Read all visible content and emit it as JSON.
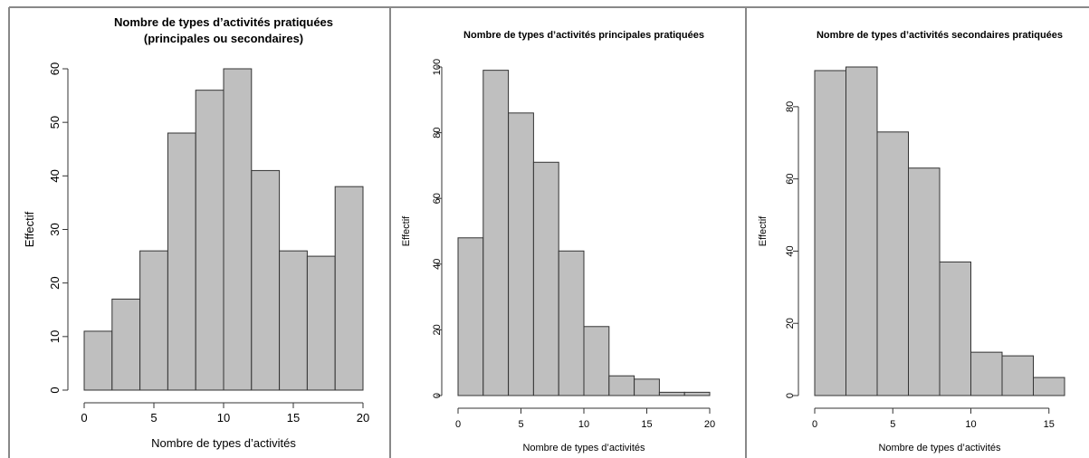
{
  "chart_data": [
    {
      "type": "bar",
      "title_lines": [
        "Nombre de types d’activités pratiquées",
        "(principales ou secondaires)"
      ],
      "xlabel": "Nombre de types d’activités",
      "ylabel": "Effectif",
      "bin_edges": [
        0,
        2,
        4,
        6,
        8,
        10,
        12,
        14,
        16,
        18,
        20
      ],
      "values": [
        11,
        17,
        26,
        48,
        56,
        60,
        41,
        26,
        25,
        38
      ],
      "xticks": [
        0,
        5,
        10,
        15,
        20
      ],
      "yticks": [
        0,
        10,
        20,
        30,
        40,
        50,
        60
      ],
      "xlim": [
        0,
        20
      ],
      "ylim": [
        0,
        60
      ]
    },
    {
      "type": "bar",
      "title_lines": [
        "Nombre de types d’activités principales pratiquées"
      ],
      "xlabel": "Nombre de types d’activités",
      "ylabel": "Effectif",
      "bin_edges": [
        0,
        2,
        4,
        6,
        8,
        10,
        12,
        14,
        16,
        18,
        20
      ],
      "values": [
        48,
        99,
        86,
        71,
        44,
        21,
        6,
        5,
        1,
        1
      ],
      "xticks": [
        0,
        5,
        10,
        15,
        20
      ],
      "yticks": [
        0,
        20,
        40,
        60,
        80,
        100
      ],
      "xlim": [
        0,
        20
      ],
      "ylim": [
        0,
        100
      ]
    },
    {
      "type": "bar",
      "title_lines": [
        "Nombre de types d’activités secondaires pratiquées"
      ],
      "xlabel": "Nombre de types d’activités",
      "ylabel": "Effectif",
      "bin_edges": [
        0,
        2,
        4,
        6,
        8,
        10,
        12,
        14,
        16
      ],
      "values": [
        90,
        91,
        73,
        63,
        37,
        12,
        11,
        5
      ],
      "xticks": [
        0,
        5,
        10,
        15
      ],
      "yticks": [
        0,
        20,
        40,
        60,
        80
      ],
      "xlim": [
        0,
        16
      ],
      "ylim": [
        0,
        91
      ]
    }
  ]
}
